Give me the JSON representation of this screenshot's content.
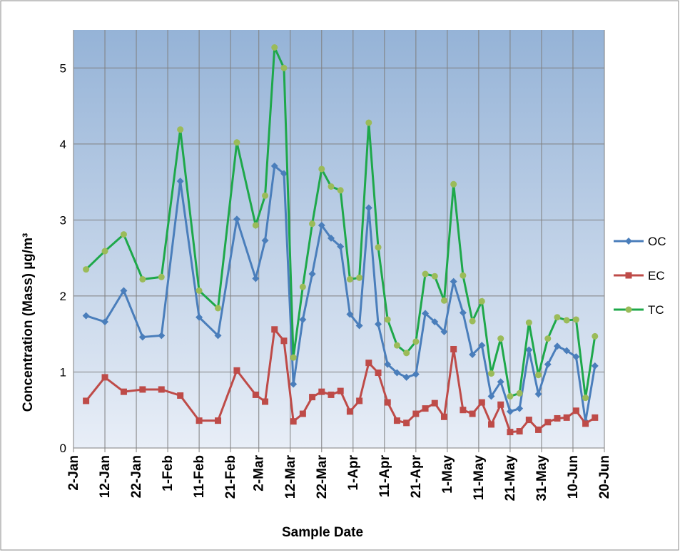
{
  "chart_data": {
    "type": "line",
    "xlabel": "Sample Date",
    "ylabel": "Concentration (Mass) µg/m³",
    "x": [
      "6-Jan",
      "12-Jan",
      "18-Jan",
      "24-Jan",
      "30-Jan",
      "5-Feb",
      "11-Feb",
      "17-Feb",
      "23-Feb",
      "1-Mar",
      "4-Mar",
      "7-Mar",
      "10-Mar",
      "13-Mar",
      "16-Mar",
      "19-Mar",
      "22-Mar",
      "25-Mar",
      "28-Mar",
      "31-Mar",
      "3-Apr",
      "6-Apr",
      "9-Apr",
      "12-Apr",
      "15-Apr",
      "18-Apr",
      "21-Apr",
      "24-Apr",
      "27-Apr",
      "30-Apr",
      "3-May",
      "6-May",
      "9-May",
      "12-May",
      "15-May",
      "18-May",
      "21-May",
      "24-May",
      "27-May",
      "30-May",
      "2-Jun",
      "5-Jun",
      "8-Jun",
      "11-Jun",
      "14-Jun",
      "17-Jun"
    ],
    "xlim": [
      "2-Jan",
      "20-Jun"
    ],
    "xticks": [
      "2-Jan",
      "12-Jan",
      "22-Jan",
      "1-Feb",
      "11-Feb",
      "21-Feb",
      "2-Mar",
      "12-Mar",
      "22-Mar",
      "1-Apr",
      "11-Apr",
      "21-Apr",
      "1-May",
      "11-May",
      "21-May",
      "31-May",
      "10-Jun",
      "20-Jun"
    ],
    "ylim": [
      0,
      5.5
    ],
    "yticks": [
      0,
      1,
      2,
      3,
      4,
      5
    ],
    "grid": true,
    "legend": "right",
    "series": [
      {
        "name": "OC",
        "color": "#4a7ebb",
        "marker": "diamond",
        "marker_color": "#4a7ebb",
        "values": [
          1.74,
          1.66,
          2.07,
          1.46,
          1.48,
          3.51,
          1.72,
          1.48,
          3.01,
          2.23,
          2.73,
          3.71,
          3.61,
          0.84,
          1.69,
          2.29,
          2.93,
          2.76,
          2.65,
          1.76,
          1.61,
          3.16,
          1.63,
          1.1,
          0.99,
          0.93,
          0.97,
          1.77,
          1.66,
          1.53,
          2.19,
          1.78,
          1.23,
          1.35,
          0.68,
          0.87,
          0.48,
          0.52,
          1.29,
          0.71,
          1.1,
          1.34,
          1.28,
          1.2,
          0.35,
          1.08
        ]
      },
      {
        "name": "EC",
        "color": "#be4b48",
        "marker": "square",
        "marker_color": "#be4b48",
        "values": [
          0.62,
          0.93,
          0.74,
          0.77,
          0.77,
          0.69,
          0.36,
          0.36,
          1.02,
          0.7,
          0.61,
          1.56,
          1.41,
          0.35,
          0.45,
          0.67,
          0.74,
          0.7,
          0.75,
          0.48,
          0.62,
          1.12,
          0.99,
          0.6,
          0.36,
          0.33,
          0.45,
          0.52,
          0.59,
          0.41,
          1.3,
          0.5,
          0.45,
          0.6,
          0.31,
          0.57,
          0.21,
          0.22,
          0.37,
          0.24,
          0.34,
          0.39,
          0.4,
          0.49,
          0.32,
          0.4
        ]
      },
      {
        "name": "TC",
        "color": "#1ea84a",
        "marker": "circle",
        "marker_color": "#9bbb59",
        "values": [
          2.35,
          2.59,
          2.81,
          2.22,
          2.25,
          4.19,
          2.07,
          1.84,
          4.02,
          2.93,
          3.32,
          5.27,
          5.0,
          1.19,
          2.12,
          2.95,
          3.67,
          3.44,
          3.39,
          2.22,
          2.24,
          4.28,
          2.64,
          1.69,
          1.35,
          1.25,
          1.4,
          2.29,
          2.26,
          1.94,
          3.47,
          2.27,
          1.67,
          1.93,
          0.98,
          1.44,
          0.68,
          0.72,
          1.65,
          0.96,
          1.44,
          1.72,
          1.68,
          1.69,
          0.66,
          1.47
        ]
      }
    ]
  }
}
